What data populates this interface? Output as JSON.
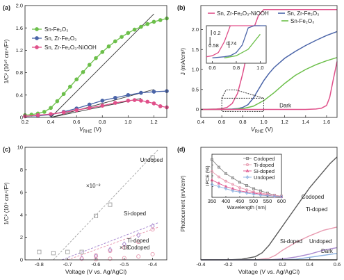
{
  "chart_data": [
    {
      "panel": "(a)",
      "type": "line",
      "xlabel_main": "V",
      "xlabel_sub": "RHE",
      "xlabel_unit": " (V)",
      "ylabel": "1/C² (10¹⁰ cm⁴/F²)",
      "xlim": [
        0.2,
        1.3
      ],
      "ylim": [
        0,
        2.0
      ],
      "xticks": [
        "0.2",
        "0.4",
        "0.6",
        "0.8",
        "1.0",
        "1.2"
      ],
      "yticks": [
        "0",
        "0.4",
        "0.8",
        "1.2",
        "1.6",
        "2.0"
      ],
      "legend_placement": "top-left",
      "series": [
        {
          "name": "Sn-Fe₂O₃",
          "color": "#6cbf4a",
          "x": [
            0.2,
            0.25,
            0.3,
            0.35,
            0.4,
            0.45,
            0.5,
            0.55,
            0.6,
            0.65,
            0.7,
            0.75,
            0.8,
            0.85,
            0.9,
            0.95,
            1.0,
            1.05,
            1.1,
            1.15,
            1.2,
            1.25,
            1.3
          ],
          "y": [
            0.04,
            0.05,
            0.07,
            0.1,
            0.17,
            0.29,
            0.42,
            0.55,
            0.68,
            0.81,
            0.94,
            1.06,
            1.17,
            1.27,
            1.36,
            1.44,
            1.51,
            1.57,
            1.62,
            1.67,
            1.71,
            1.74,
            1.77
          ]
        },
        {
          "name": "Sn, Zr-Fe₂O₃",
          "color": "#4a64a8",
          "x": [
            0.2,
            0.3,
            0.4,
            0.5,
            0.6,
            0.7,
            0.8,
            0.9,
            1.0,
            1.1,
            1.2,
            1.3
          ],
          "y": [
            0.02,
            0.03,
            0.05,
            0.1,
            0.16,
            0.23,
            0.3,
            0.35,
            0.4,
            0.44,
            0.46,
            0.47
          ]
        },
        {
          "name": "Sn, Zr-Fe₂O₃-NiOOH",
          "color": "#e0508a",
          "x": [
            0.2,
            0.3,
            0.4,
            0.5,
            0.6,
            0.7,
            0.8,
            0.9,
            1.0,
            1.05,
            1.1,
            1.15,
            1.2,
            1.25,
            1.3
          ],
          "y": [
            0.02,
            0.04,
            0.06,
            0.09,
            0.13,
            0.17,
            0.21,
            0.26,
            0.3,
            0.31,
            0.3,
            0.28,
            0.25,
            0.2,
            0.18
          ]
        }
      ],
      "fit_lines": [
        {
          "x": [
            0.4,
            1.2
          ],
          "y": [
            0.0,
            1.85
          ]
        },
        {
          "x": [
            0.4,
            1.2
          ],
          "y": [
            0.0,
            0.5
          ]
        },
        {
          "x": [
            0.4,
            1.1
          ],
          "y": [
            0.0,
            0.34
          ]
        }
      ]
    },
    {
      "panel": "(b)",
      "type": "line",
      "xlabel_main": "V",
      "xlabel_sub": "RHE",
      "xlabel_unit": " (V)",
      "ylabel": "J (mA/cm²)",
      "xlim": [
        0.4,
        1.7
      ],
      "ylim": [
        -0.2,
        2.6
      ],
      "xticks": [
        "0.4",
        "0.6",
        "0.8",
        "1.0",
        "1.2",
        "1.4",
        "1.6"
      ],
      "yticks": [
        "0",
        "0.5",
        "1.0",
        "1.5",
        "2.0"
      ],
      "legend_placement": "top",
      "dark_label": "Dark",
      "series": [
        {
          "name": "Sn, Zr-Fe₂O₃-NiOOH",
          "color": "#e0508a",
          "x": [
            0.4,
            0.55,
            0.6,
            0.65,
            0.7,
            0.75,
            0.8,
            0.85,
            0.9,
            0.95,
            1.0,
            1.1,
            1.2,
            1.3,
            1.4,
            1.5,
            1.6,
            1.7
          ],
          "y": [
            0.0,
            0.01,
            0.02,
            0.05,
            0.15,
            0.4,
            0.9,
            1.5,
            2.0,
            2.35,
            2.5,
            2.5,
            2.5,
            2.5,
            2.5,
            2.5,
            2.5,
            2.5
          ]
        },
        {
          "name": "Sn, Zr-Fe₂O₃",
          "color": "#4a64a8",
          "x": [
            0.4,
            0.6,
            0.7,
            0.75,
            0.8,
            0.85,
            0.9,
            0.95,
            1.0,
            1.05,
            1.1,
            1.2,
            1.3,
            1.4,
            1.5,
            1.6,
            1.7
          ],
          "y": [
            0.0,
            0.0,
            0.01,
            0.02,
            0.05,
            0.12,
            0.28,
            0.5,
            0.72,
            0.9,
            1.05,
            1.28,
            1.45,
            1.6,
            1.73,
            1.85,
            1.95
          ]
        },
        {
          "name": "Sn-Fe₂O₃",
          "color": "#6cbf4a",
          "x": [
            0.4,
            0.7,
            0.8,
            0.85,
            0.9,
            1.0,
            1.1,
            1.2,
            1.3,
            1.4,
            1.5,
            1.6,
            1.7
          ],
          "y": [
            0.0,
            0.0,
            0.02,
            0.05,
            0.08,
            0.22,
            0.42,
            0.65,
            0.85,
            1.0,
            1.12,
            1.22,
            1.3
          ]
        },
        {
          "name": "Dark",
          "color": "#e0508a",
          "x": [
            0.4,
            0.8,
            1.0,
            1.2,
            1.4,
            1.5,
            1.55,
            1.6,
            1.63,
            1.66,
            1.7
          ],
          "y": [
            0.0,
            0.0,
            0.0,
            0.0,
            0.0,
            0.01,
            0.03,
            0.1,
            0.3,
            0.7,
            1.2
          ]
        }
      ],
      "inset": {
        "xlim": [
          0.55,
          1.05
        ],
        "ylim": [
          -0.05,
          0.3
        ],
        "xticks": [
          "0.6",
          "0.8",
          "1.0"
        ],
        "annotations": [
          "0.58",
          "0.74",
          "0.2"
        ]
      }
    },
    {
      "panel": "(c)",
      "type": "scatter",
      "xlabel": "Voltage (V vs. Ag/AgCl)",
      "ylabel": "1/C² (10⁹ cm⁴/F²)",
      "xlim": [
        -0.85,
        -0.35
      ],
      "ylim": [
        0,
        10
      ],
      "xticks": [
        "-0.8",
        "-0.7",
        "-0.6",
        "-0.5",
        "-0.4"
      ],
      "yticks": [
        "0",
        "2",
        "4",
        "6",
        "8",
        "10"
      ],
      "annotations": [
        "Undoped",
        "×10⁻²",
        "Si-doped",
        "Ti-doped",
        "×10",
        "Codoped"
      ],
      "series": [
        {
          "name": "Undoped",
          "color": "#9e9e9e",
          "marker": "square",
          "x": [
            -0.8,
            -0.75,
            -0.7,
            -0.65,
            -0.6,
            -0.55,
            -0.4
          ],
          "y": [
            0.7,
            0.6,
            0.7,
            0.7,
            3.9,
            4.9,
            9.1
          ]
        },
        {
          "name": "Si-doped",
          "color": "#a98ad0",
          "marker": "diamond",
          "x": [
            -0.65,
            -0.6,
            -0.55,
            -0.5,
            -0.45,
            -0.4
          ],
          "y": [
            0.15,
            0.3,
            0.9,
            1.4,
            2.2,
            3.0
          ]
        },
        {
          "name": "Ti-doped",
          "color": "#e89ab0",
          "marker": "circle",
          "x": [
            -0.65,
            -0.6,
            -0.55,
            -0.5,
            -0.45,
            -0.4
          ],
          "y": [
            0.1,
            0.4,
            0.8,
            1.1,
            1.6,
            2.7
          ]
        },
        {
          "name": "Codoped",
          "color": "#e89ab0",
          "marker": "circle",
          "x": [
            -0.6,
            -0.55,
            -0.5,
            -0.45,
            -0.4
          ],
          "y": [
            0.05,
            0.1,
            0.15,
            0.3,
            0.5
          ]
        }
      ],
      "fit_lines": [
        {
          "x": [
            -0.75,
            -0.38
          ],
          "y": [
            0.0,
            9.8
          ]
        },
        {
          "x": [
            -0.72,
            -0.38
          ],
          "y": [
            0.0,
            3.3
          ]
        },
        {
          "x": [
            -0.7,
            -0.38
          ],
          "y": [
            0.0,
            2.9
          ]
        }
      ]
    },
    {
      "panel": "(d)",
      "type": "line",
      "xlabel": "Voltage (V vs. Ag/AgCl)",
      "ylabel": "Photocurrent (mA/cm²)",
      "xlim": [
        -0.4,
        0.6
      ],
      "ylim": [
        0,
        3.5
      ],
      "xticks": [
        "-0.4",
        "-0.2",
        "0",
        "0.2",
        "0.4",
        "0.6"
      ],
      "yticks": [],
      "annotations": [
        "Codoped",
        "Ti-doped",
        "Si-doped",
        "Undoped",
        "Dark"
      ],
      "series": [
        {
          "name": "Codoped",
          "color": "#5a5a5a",
          "x": [
            -0.4,
            -0.2,
            -0.1,
            0.0,
            0.05,
            0.1,
            0.15,
            0.2,
            0.25,
            0.3,
            0.35,
            0.4,
            0.45,
            0.5,
            0.55,
            0.6
          ],
          "y": [
            0.0,
            0.0,
            0.02,
            0.1,
            0.22,
            0.45,
            0.75,
            1.05,
            1.35,
            1.65,
            1.95,
            2.25,
            2.5,
            2.75,
            3.0,
            3.2
          ]
        },
        {
          "name": "Ti-doped",
          "color": "#e89ab0",
          "x": [
            -0.4,
            0.0,
            0.1,
            0.15,
            0.2,
            0.3,
            0.4,
            0.5,
            0.6
          ],
          "y": [
            0.0,
            0.0,
            0.05,
            0.15,
            0.3,
            0.55,
            0.75,
            0.92,
            1.02
          ]
        },
        {
          "name": "Si-doped",
          "color": "#a98ad0",
          "x": [
            -0.4,
            0.1,
            0.2,
            0.3,
            0.4,
            0.5,
            0.6
          ],
          "y": [
            0.0,
            0.0,
            0.03,
            0.09,
            0.18,
            0.3,
            0.38
          ]
        },
        {
          "name": "Undoped",
          "color": "#8ab0e0",
          "x": [
            -0.4,
            0.2,
            0.3,
            0.4,
            0.5,
            0.6
          ],
          "y": [
            0.0,
            0.0,
            0.02,
            0.08,
            0.14,
            0.2
          ]
        },
        {
          "name": "Dark",
          "color": "#444444",
          "x": [
            -0.4,
            0.6
          ],
          "y": [
            0.0,
            0.0
          ]
        }
      ],
      "inset": {
        "xlabel": "Wavelength (nm)",
        "ylabel": "IPCE (%)",
        "xlim": [
          350,
          600
        ],
        "ylim": [
          0,
          40
        ],
        "xticks": [
          "350",
          "400",
          "450",
          "500",
          "550",
          "600"
        ],
        "yticks": [
          "0",
          "10",
          "20",
          "30",
          "40"
        ],
        "series": [
          {
            "name": "Codoped",
            "color": "#888888",
            "marker": "square",
            "x": [
              350,
              375,
              400,
              425,
              450,
              475,
              500,
              525,
              550,
              575,
              600
            ],
            "y": [
              35,
              28,
              22,
              18,
              14,
              11,
              8,
              6,
              4,
              2,
              1
            ]
          },
          {
            "name": "Ti-doped",
            "color": "#e89ab0",
            "marker": "circle",
            "x": [
              350,
              375,
              400,
              425,
              450,
              475,
              500,
              525,
              550,
              575,
              600
            ],
            "y": [
              24,
              19,
              15,
              12,
              9,
              7,
              5,
              4,
              3,
              2,
              1
            ]
          },
          {
            "name": "Si-doped",
            "color": "#e0508a",
            "marker": "triangle",
            "x": [
              350,
              375,
              400,
              425,
              450,
              475,
              500,
              525,
              550,
              575,
              600
            ],
            "y": [
              16,
              13,
              10,
              8,
              6,
              5,
              4,
              3,
              2,
              1,
              0.5
            ]
          },
          {
            "name": "Undoped",
            "color": "#8ab0e0",
            "marker": "diamond",
            "x": [
              350,
              375,
              400,
              425,
              450,
              475,
              500,
              525,
              550,
              575,
              600
            ],
            "y": [
              12,
              10,
              8,
              6,
              5,
              4,
              3,
              2,
              1.5,
              1,
              0.5
            ]
          }
        ]
      }
    }
  ]
}
